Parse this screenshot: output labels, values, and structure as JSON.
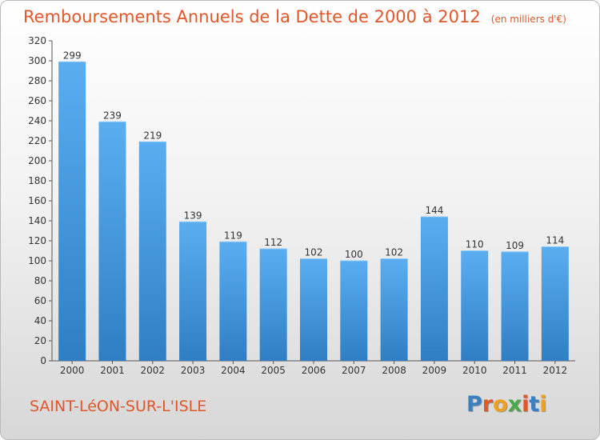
{
  "header": {
    "title": "Remboursements Annuels de la Dette de 2000 à 2012",
    "unit": "(en milliers d'€)"
  },
  "footer": {
    "city": "SAINT-LéON-SUR-L'ISLE",
    "logo_letters": [
      "P",
      "r",
      "o",
      "x",
      "i",
      "t",
      "i"
    ],
    "logo_colors": [
      "#3a7fc4",
      "#e0572a",
      "#f0a020",
      "#4aa84a",
      "#e0572a",
      "#3a7fc4",
      "#f0a020"
    ]
  },
  "colors": {
    "bar_top": "#5aaef0",
    "bar_bottom": "#2f7ec4",
    "text_accent": "#e0572a"
  },
  "chart_data": {
    "type": "bar",
    "categories": [
      "2000",
      "2001",
      "2002",
      "2003",
      "2004",
      "2005",
      "2006",
      "2007",
      "2008",
      "2009",
      "2010",
      "2011",
      "2012"
    ],
    "values": [
      299,
      239,
      219,
      139,
      119,
      112,
      102,
      100,
      102,
      144,
      110,
      109,
      114
    ],
    "ylim": [
      0,
      320
    ],
    "yticks": [
      0,
      20,
      40,
      60,
      80,
      100,
      120,
      140,
      160,
      180,
      200,
      220,
      240,
      260,
      280,
      300,
      320
    ],
    "grid": false,
    "legend": "none"
  }
}
